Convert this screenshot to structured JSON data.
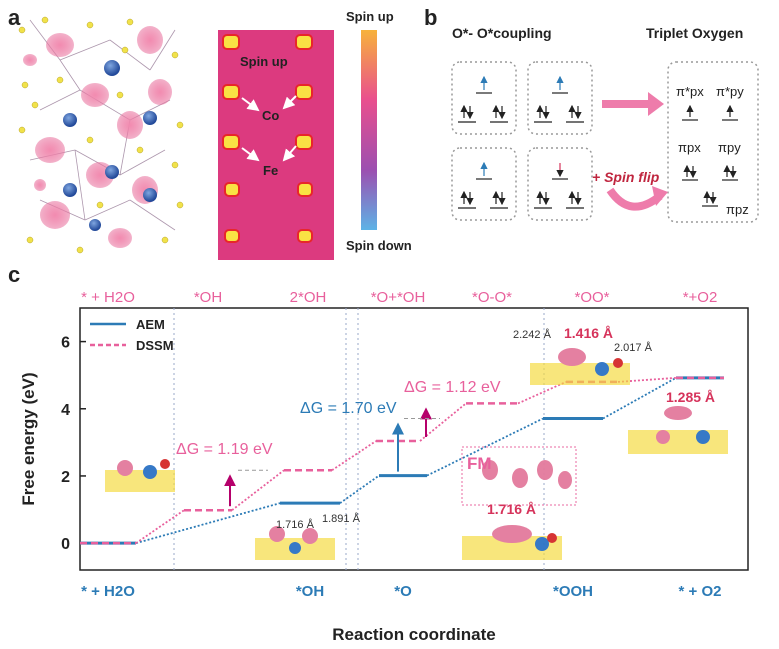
{
  "panels": {
    "a": "a",
    "b": "b",
    "c": "c"
  },
  "spin_map": {
    "label_up": "Spin up",
    "label_co": "Co",
    "label_fe": "Fe",
    "colorbar_top": "Spin up",
    "colorbar_bottom": "Spin down"
  },
  "panel_b": {
    "title_left": "O*- O*coupling",
    "title_right": "Triplet Oxygen",
    "spin_flip": "+ Spin flip",
    "orbitals": {
      "pi_star_px": "π*px",
      "pi_star_py": "π*py",
      "pi_px": "πpx",
      "pi_py": "πpy",
      "pi_pz": "πpz"
    }
  },
  "chart_data": {
    "type": "line",
    "ylabel": "Free energy (eV)",
    "xlabel": "Reaction coordinate",
    "ylim": [
      -0.8,
      7
    ],
    "yticks": [
      0,
      2,
      4,
      6
    ],
    "series": [
      {
        "name": "AEM",
        "color": "#2c7bb6",
        "steps": [
          0,
          1.19,
          2.01,
          3.71,
          4.92
        ],
        "top_labels": [],
        "bottom_labels": [
          "* + H2O",
          "*OH",
          "*O",
          "*OOH",
          "* + O2"
        ]
      },
      {
        "name": "DSSM",
        "color": "#e8609c",
        "steps": [
          0,
          0.98,
          2.17,
          3.04,
          4.16,
          4.8,
          4.92
        ],
        "top_labels": [
          "* + H2O",
          "*OH",
          "2*OH",
          "*O+*OH",
          "*O-O*",
          "*OO*",
          "*+O2"
        ]
      }
    ],
    "annotations": [
      {
        "text": "ΔG = 1.19 eV",
        "color": "#e8609c"
      },
      {
        "text": "ΔG = 1.70 eV",
        "color": "#2c7bb6"
      },
      {
        "text": "ΔG = 1.12 eV",
        "color": "#e8609c"
      },
      {
        "text": "1.716 Å",
        "color": "#333333"
      },
      {
        "text": "1.891 Å",
        "color": "#333333"
      },
      {
        "text": "2.242 Å",
        "color": "#333333"
      },
      {
        "text": "1.416 Å",
        "color": "#d6335b"
      },
      {
        "text": "2.017 Å",
        "color": "#333333"
      },
      {
        "text": "1.285 Å",
        "color": "#d6335b"
      },
      {
        "text": "FM",
        "color": "#e8609c"
      },
      {
        "text": "1.716 Å",
        "color": "#d6335b"
      }
    ]
  }
}
